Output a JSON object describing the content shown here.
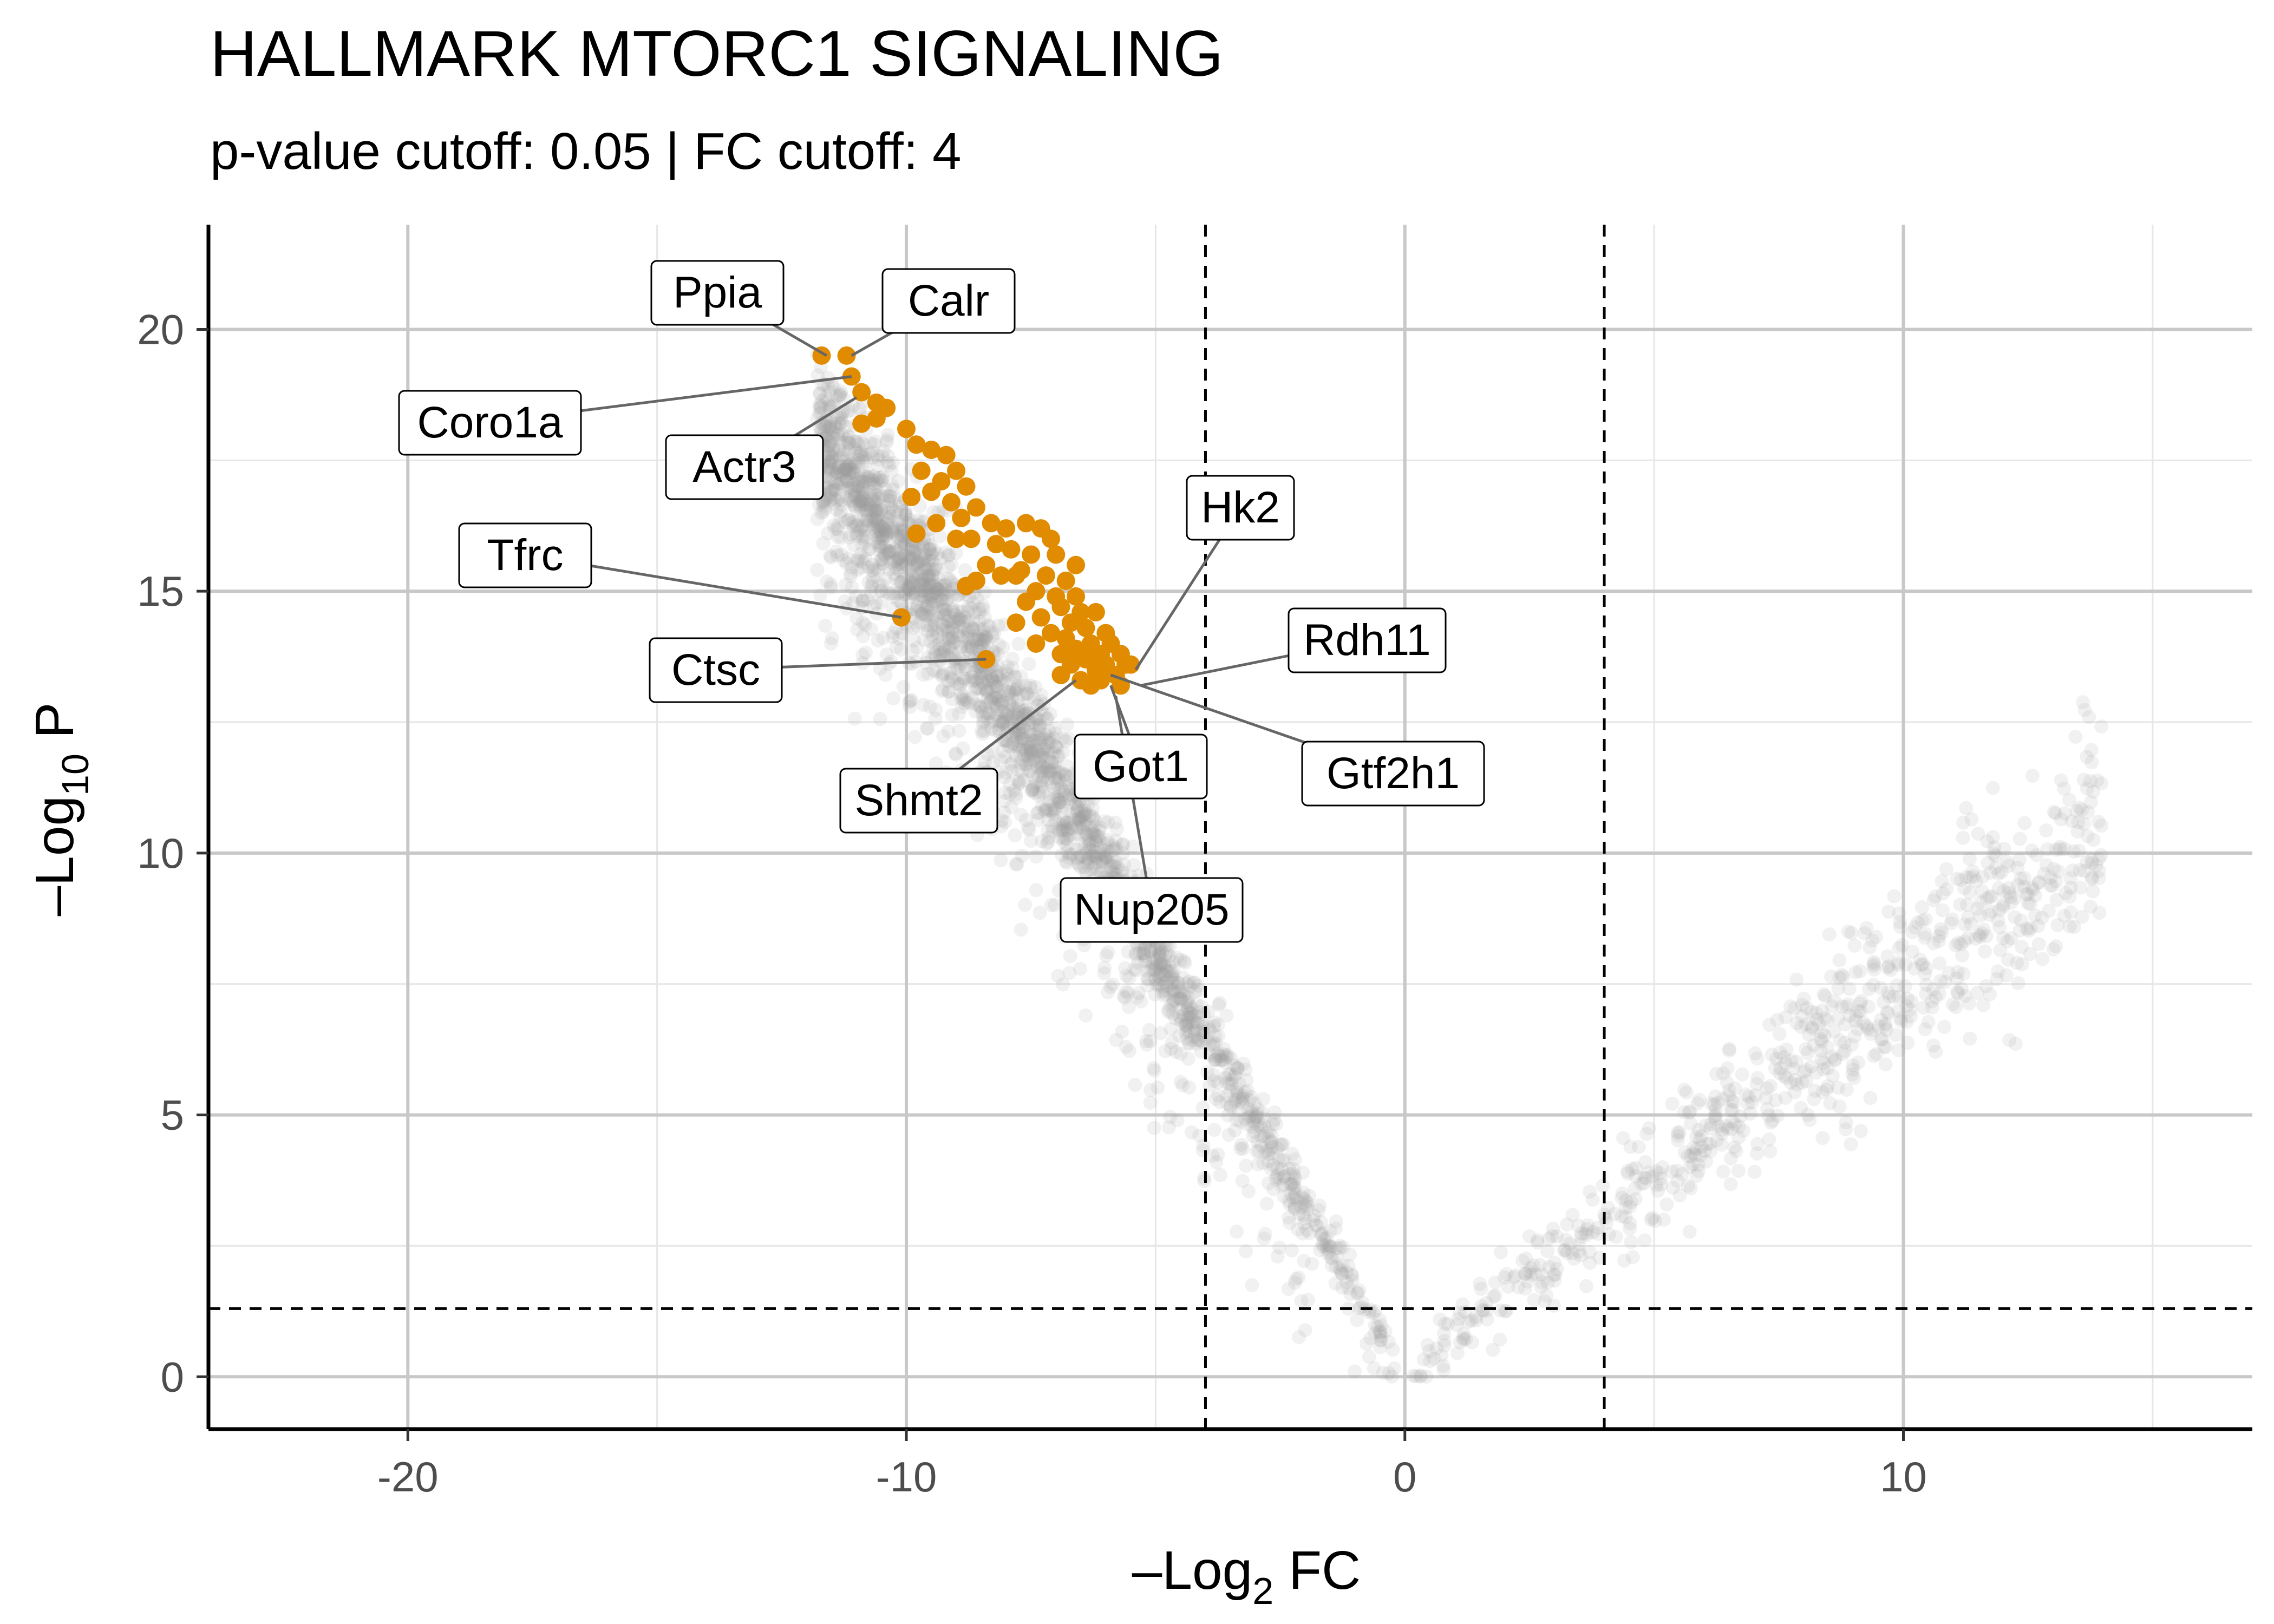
{
  "chart_data": {
    "type": "scatter",
    "title": "HALLMARK MTORC1 SIGNALING",
    "subtitle": "p-value cutoff: 0.05 | FC cutoff: 4",
    "xlabel_main": "–Log",
    "xlabel_sub": "2",
    "xlabel_tail": " FC",
    "ylabel_main": "–Log",
    "ylabel_sub": "10",
    "ylabel_tail": " P",
    "xlim": [
      -24,
      17
    ],
    "ylim": [
      -1,
      22
    ],
    "x_ticks": [
      -20,
      -10,
      0,
      10
    ],
    "y_ticks": [
      0,
      5,
      10,
      15,
      20
    ],
    "grid": true,
    "legend": "none",
    "fc_cutoff": 4,
    "p_cutoff": 0.05,
    "colors": {
      "background_points": "#999999",
      "highlight_points": "#E08B00",
      "grid_major": "#c8c8c8",
      "grid_minor": "#e6e6e6",
      "cutoff_line": "#000000",
      "connector": "#666666"
    },
    "highlighted_genes": [
      {
        "label": "Ppia",
        "x": -11.6,
        "y": 19.5
      },
      {
        "label": "Calr",
        "x": -11.1,
        "y": 19.5
      },
      {
        "label": "Coro1a",
        "x": -11.1,
        "y": 19.1
      },
      {
        "label": "Actr3",
        "x": -11.0,
        "y": 18.7
      },
      {
        "label": "Tfrc",
        "x": -10.1,
        "y": 14.5
      },
      {
        "label": "Ctsc",
        "x": -8.4,
        "y": 13.7
      },
      {
        "label": "Hk2",
        "x": -5.4,
        "y": 13.5
      },
      {
        "label": "Rdh11",
        "x": -5.3,
        "y": 13.2
      },
      {
        "label": "Gtf2h1",
        "x": -5.9,
        "y": 13.4
      },
      {
        "label": "Got1",
        "x": -5.9,
        "y": 13.2
      },
      {
        "label": "Shmt2",
        "x": -6.6,
        "y": 13.3
      },
      {
        "label": "Nup205",
        "x": -5.8,
        "y": 13.0
      }
    ],
    "highlighted_points": [
      [
        -11.7,
        19.5
      ],
      [
        -11.2,
        19.5
      ],
      [
        -11.1,
        19.1
      ],
      [
        -10.9,
        18.8
      ],
      [
        -10.6,
        18.6
      ],
      [
        -10.4,
        18.5
      ],
      [
        -10.9,
        18.2
      ],
      [
        -10.6,
        18.3
      ],
      [
        -10.0,
        18.1
      ],
      [
        -9.8,
        17.8
      ],
      [
        -9.5,
        17.7
      ],
      [
        -9.2,
        17.6
      ],
      [
        -9.7,
        17.3
      ],
      [
        -9.3,
        17.1
      ],
      [
        -9.0,
        17.3
      ],
      [
        -8.8,
        17.0
      ],
      [
        -9.5,
        16.9
      ],
      [
        -9.1,
        16.7
      ],
      [
        -9.9,
        16.8
      ],
      [
        -8.6,
        16.6
      ],
      [
        -8.9,
        16.4
      ],
      [
        -9.4,
        16.3
      ],
      [
        -8.3,
        16.3
      ],
      [
        -8.0,
        16.2
      ],
      [
        -7.6,
        16.3
      ],
      [
        -7.3,
        16.2
      ],
      [
        -8.7,
        16.0
      ],
      [
        -8.2,
        15.9
      ],
      [
        -7.9,
        15.8
      ],
      [
        -7.5,
        15.7
      ],
      [
        -7.0,
        15.7
      ],
      [
        -8.4,
        15.5
      ],
      [
        -7.7,
        15.4
      ],
      [
        -7.2,
        15.3
      ],
      [
        -6.8,
        15.2
      ],
      [
        -8.6,
        15.2
      ],
      [
        -8.1,
        15.3
      ],
      [
        -8.8,
        15.1
      ],
      [
        -7.4,
        15.0
      ],
      [
        -7.0,
        14.9
      ],
      [
        -6.6,
        14.9
      ],
      [
        -7.6,
        14.8
      ],
      [
        -6.9,
        14.7
      ],
      [
        -6.5,
        14.6
      ],
      [
        -6.2,
        14.6
      ],
      [
        -7.3,
        14.5
      ],
      [
        -6.7,
        14.4
      ],
      [
        -7.8,
        14.4
      ],
      [
        -6.4,
        14.3
      ],
      [
        -6.0,
        14.2
      ],
      [
        -7.1,
        14.2
      ],
      [
        -6.8,
        14.1
      ],
      [
        -6.3,
        14.0
      ],
      [
        -5.9,
        14.0
      ],
      [
        -7.4,
        14.0
      ],
      [
        -6.6,
        13.9
      ],
      [
        -6.1,
        13.8
      ],
      [
        -5.7,
        13.8
      ],
      [
        -6.9,
        13.8
      ],
      [
        -6.4,
        13.7
      ],
      [
        -6.0,
        13.6
      ],
      [
        -5.6,
        13.6
      ],
      [
        -6.7,
        13.6
      ],
      [
        -6.2,
        13.5
      ],
      [
        -5.8,
        13.4
      ],
      [
        -5.5,
        13.6
      ],
      [
        -6.5,
        13.3
      ],
      [
        -6.1,
        13.3
      ],
      [
        -5.7,
        13.2
      ],
      [
        -6.9,
        13.4
      ],
      [
        -6.3,
        13.2
      ],
      [
        -10.1,
        14.5
      ],
      [
        -8.4,
        13.7
      ],
      [
        -9.8,
        16.1
      ],
      [
        -7.8,
        15.3
      ],
      [
        -7.1,
        16.0
      ],
      [
        -6.6,
        15.5
      ],
      [
        -9.0,
        16.0
      ]
    ],
    "cloud": {
      "up_left": {
        "tail": 13.2,
        "slope": 1.55,
        "ks": [
          -24.8,
          -0.14
        ],
        "spread": 0.9
      },
      "up_right": {
        "tail": 14.0,
        "slope": 1.15,
        "ks": [
          -24.8,
          -0.14
        ],
        "spread": 1.1
      }
    },
    "annotations": [
      "Ppia",
      "Calr",
      "Coro1a",
      "Actr3",
      "Tfrc",
      "Ctsc",
      "Hk2",
      "Rdh11",
      "Gtf2h1",
      "Got1",
      "Shmt2",
      "Nup205"
    ]
  }
}
